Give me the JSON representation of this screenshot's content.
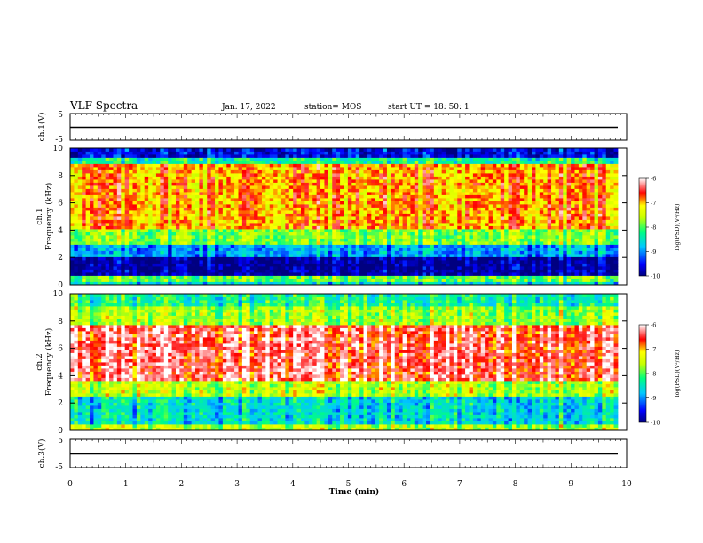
{
  "header": {
    "title": "VLF Spectra",
    "date": "Jan. 17, 2022",
    "station": "station= MOS",
    "start": "start UT =  18: 50: 1"
  },
  "chart_data": [
    {
      "type": "line",
      "ylabel": "ch.1(V)",
      "yticks": [
        "5",
        "-5"
      ],
      "ylim": [
        -5,
        5
      ],
      "xlim": [
        0,
        10
      ],
      "series": [
        {
          "x": [
            0,
            9.84
          ],
          "y": [
            0,
            0
          ]
        }
      ]
    },
    {
      "type": "heatmap",
      "ylabel_lines": [
        "ch.1",
        "Frequency (kHz)"
      ],
      "yticks": [
        "0",
        "2",
        "4",
        "6",
        "8",
        "10"
      ],
      "ylim": [
        0,
        10
      ],
      "xlim": [
        0,
        10
      ],
      "colorbar": {
        "label": "log(PSD)(V²/Hz)",
        "ticks": [
          "-6",
          "-7",
          "-8",
          "-9",
          "-10"
        ],
        "range": [
          -10,
          -6
        ]
      },
      "band_profile": [
        {
          "f": [
            0,
            0.3
          ],
          "level": -8.6
        },
        {
          "f": [
            0.3,
            0.7
          ],
          "level": -7.9
        },
        {
          "f": [
            0.7,
            2.0
          ],
          "level": -9.9
        },
        {
          "f": [
            2.0,
            3.0
          ],
          "level": -8.9
        },
        {
          "f": [
            3.0,
            4.2
          ],
          "level": -7.8
        },
        {
          "f": [
            4.2,
            8.8
          ],
          "level": -6.9
        },
        {
          "f": [
            8.8,
            9.4
          ],
          "level": -8.3
        },
        {
          "f": [
            9.4,
            10
          ],
          "level": -9.6
        }
      ]
    },
    {
      "type": "heatmap",
      "ylabel_lines": [
        "ch.2",
        "Frequency (kHz)"
      ],
      "yticks": [
        "0",
        "2",
        "4",
        "6",
        "8",
        "10"
      ],
      "ylim": [
        0,
        10
      ],
      "xlim": [
        0,
        10
      ],
      "colorbar": {
        "label": "log(PSD)(V²/Hz)",
        "ticks": [
          "-6",
          "-7",
          "-8",
          "-9",
          "-10"
        ],
        "range": [
          -10,
          -6
        ]
      },
      "band_profile": [
        {
          "f": [
            0,
            0.4
          ],
          "level": -7.6
        },
        {
          "f": [
            0.4,
            2.6
          ],
          "level": -8.6
        },
        {
          "f": [
            2.6,
            3.6
          ],
          "level": -7.6
        },
        {
          "f": [
            3.6,
            7.8
          ],
          "level": -6.4
        },
        {
          "f": [
            7.8,
            9.0
          ],
          "level": -7.7
        },
        {
          "f": [
            9.0,
            10
          ],
          "level": -8.3
        }
      ]
    },
    {
      "type": "line",
      "ylabel": "ch.3(V)",
      "yticks": [
        "5",
        "-5"
      ],
      "ylim": [
        -5,
        5
      ],
      "xlim": [
        0,
        10
      ],
      "series": [
        {
          "x": [
            0,
            9.84
          ],
          "y": [
            0,
            0
          ]
        }
      ]
    }
  ],
  "xaxis": {
    "label": "Time (min)",
    "ticks": [
      "0",
      "1",
      "2",
      "3",
      "4",
      "5",
      "6",
      "7",
      "8",
      "9",
      "10"
    ],
    "range": [
      0,
      10
    ],
    "data_end": 9.84
  }
}
